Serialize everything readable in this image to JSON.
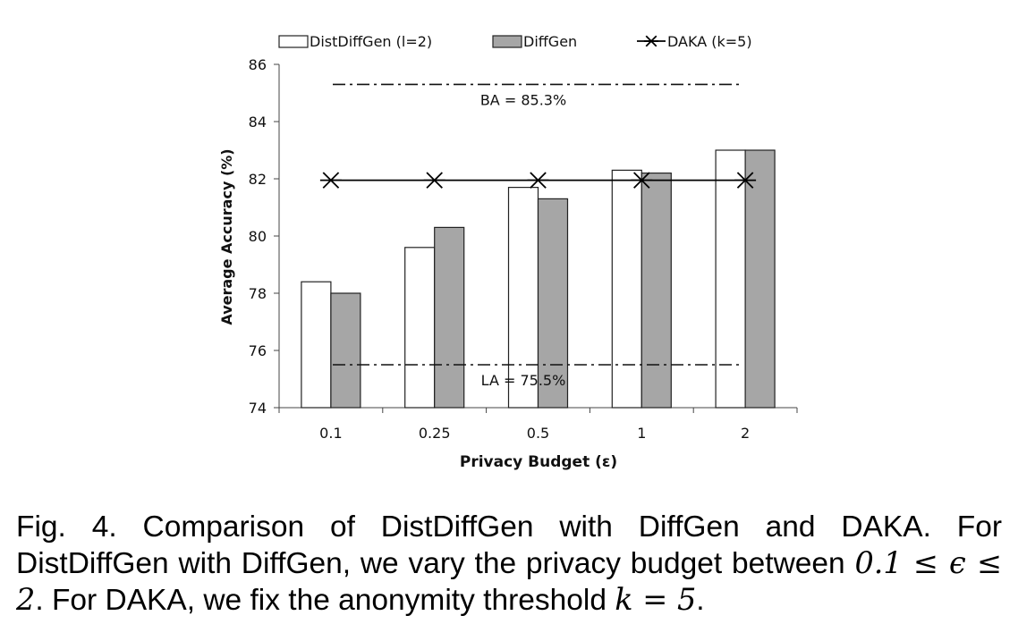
{
  "chart_data": {
    "type": "bar",
    "categories": [
      "0.1",
      "0.25",
      "0.5",
      "1",
      "2"
    ],
    "series": [
      {
        "name": "DistDiffGen (l=2)",
        "values": [
          78.4,
          79.6,
          81.7,
          82.3,
          83.0
        ],
        "color": "#ffffff"
      },
      {
        "name": "DiffGen",
        "values": [
          78.0,
          80.3,
          81.3,
          82.2,
          83.0
        ],
        "color": "#a6a6a6"
      },
      {
        "name": "DAKA (k=5)",
        "kind": "line",
        "marker": "asterisk",
        "values": [
          81.95,
          81.95,
          81.95,
          81.95,
          81.95
        ],
        "color": "#000000"
      }
    ],
    "reference_lines": [
      {
        "label": "BA = 85.3%",
        "value": 85.3
      },
      {
        "label": "LA = 75.5%",
        "value": 75.5
      }
    ],
    "xlabel": "Privacy Budget (ε)",
    "ylabel": "Average Accuracy (%)",
    "ylim": [
      74,
      86
    ],
    "yticks": [
      "74",
      "76",
      "78",
      "80",
      "82",
      "84",
      "86"
    ],
    "grid": false,
    "legend_position": "top"
  },
  "caption": {
    "fig_label": "Fig. 4.",
    "line1_text": "Comparison of DistDiffGen with DiffGen and DAKA. For DistDiffGen with DiffGen, we vary the privacy budget between",
    "math_range": "0.1 ≤ ϵ ≤ 2",
    "line3_text": ". For DAKA, we fix the anonymity threshold",
    "math_k": "k = 5",
    "end": "."
  }
}
